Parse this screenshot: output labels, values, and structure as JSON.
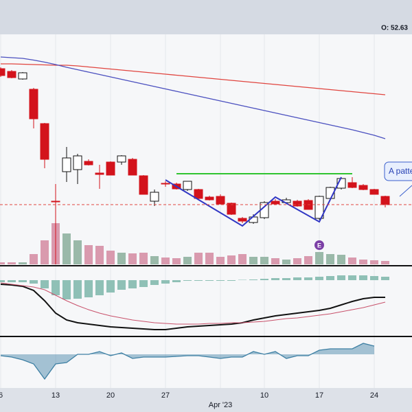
{
  "header": {
    "text": "O: 52.63"
  },
  "chart_data": [
    {
      "type": "candlestick",
      "categories": [
        "6",
        null,
        null,
        null,
        null,
        "13",
        null,
        null,
        null,
        null,
        "20",
        null,
        null,
        null,
        null,
        "27",
        null,
        null,
        null,
        null,
        "Apr '23",
        null,
        null,
        null,
        "10",
        null,
        null,
        null,
        null,
        "17",
        null,
        null,
        null,
        null,
        "24",
        null
      ],
      "open": [
        60,
        59.2,
        57,
        54,
        44,
        21.4,
        30,
        30.6,
        33,
        29.6,
        32.8,
        32.8,
        33.6,
        28.8,
        21.4,
        26.6,
        26.4,
        24.8,
        24.8,
        22.6,
        22.8,
        20.8,
        16.4,
        15.2,
        16.6,
        21.4,
        21,
        21.4,
        21.6,
        16.4,
        22.2,
        25.2,
        26.8,
        26,
        24.8,
        22.8
      ],
      "high": [
        60.4,
        59.6,
        59,
        54.4,
        44.2,
        26.4,
        37.2,
        35.2,
        33.6,
        32,
        33,
        34.8,
        34,
        29,
        24.8,
        27.2,
        26.8,
        27.2,
        25,
        23,
        23.4,
        21,
        16.8,
        17.6,
        21.4,
        22,
        22.4,
        21.8,
        22,
        23,
        25.6,
        28.4,
        28.4,
        26.4,
        25,
        23
      ],
      "low": [
        57.6,
        57.2,
        56.8,
        42.6,
        31,
        3,
        27,
        26.4,
        31.8,
        25,
        29,
        32,
        29,
        23.4,
        20,
        25.6,
        24.8,
        24.4,
        22,
        21.6,
        20.4,
        17.4,
        15,
        14.8,
        16.2,
        20.4,
        20.6,
        19.8,
        19,
        16,
        22,
        24.8,
        25.2,
        24.6,
        23.4,
        19.6
      ],
      "close": [
        58,
        57.4,
        58.8,
        45.4,
        33.6,
        21.2,
        34,
        34.6,
        32,
        29.2,
        29,
        34.6,
        29,
        23.4,
        24,
        26.4,
        25,
        27.2,
        22.2,
        21.8,
        20.6,
        17.6,
        15.6,
        16.8,
        21,
        20.6,
        21.8,
        20,
        19,
        22.8,
        25.4,
        28,
        25.4,
        24.8,
        23.4,
        20.4
      ],
      "up_color": "#ffffff",
      "down_color": "#d3131c",
      "series": [
        {
          "color": "#e0443e",
          "values": [
            61.4,
            61.4,
            61.3,
            61.2,
            61.1,
            61,
            61,
            60.8,
            60.5,
            60.2,
            59.9,
            59.6,
            59.3,
            59,
            58.7,
            58.4,
            58.1,
            57.8,
            57.5,
            57.2,
            56.9,
            56.6,
            56.3,
            56,
            55.7,
            55.4,
            55.1,
            54.8,
            54.5,
            54.2,
            53.9,
            53.6,
            53.3,
            53,
            52.7,
            52.4
          ]
        },
        {
          "color": "#4a4fbf",
          "values": [
            63.4,
            63.2,
            63,
            62.5,
            61.9,
            61.2,
            60.4,
            59.7,
            59,
            58.3,
            57.6,
            56.9,
            56.2,
            55.5,
            54.8,
            54.1,
            53.4,
            52.7,
            52,
            51.3,
            50.6,
            49.9,
            49.2,
            48.5,
            47.8,
            47.1,
            46.4,
            45.7,
            45,
            44.3,
            43.6,
            42.9,
            42.2,
            41.4,
            40.6,
            39.6
          ]
        }
      ],
      "drawings": [
        {
          "color": "#2fc42f",
          "x": [
            16,
            32
          ],
          "values": [
            29.4,
            29.4
          ]
        },
        {
          "color": "#3137c4",
          "x": [
            15,
            22,
            25,
            29,
            31
          ],
          "values": [
            27.6,
            14.2,
            22.6,
            15.4,
            28.4
          ]
        }
      ],
      "price_line_color": "#e0443e",
      "annotation": "A patte",
      "ylim": [
        3,
        70
      ]
    },
    {
      "type": "bar",
      "values": [
        3,
        3,
        3,
        15,
        35,
        60,
        45,
        35,
        28,
        27,
        20,
        17,
        16,
        17,
        12,
        10,
        9,
        11,
        17,
        17,
        11,
        13,
        15,
        11,
        11,
        9,
        7,
        9,
        12,
        18,
        15,
        14,
        10,
        7,
        6,
        5
      ],
      "up_color": "#9ab9a9",
      "down_color": "#d99aae",
      "event": {
        "index": 29,
        "label": "E",
        "color": "#7b3fa6"
      },
      "ylim": [
        0,
        335
      ]
    },
    {
      "type": "macd",
      "values": [
        -3,
        -3,
        -3,
        -5,
        -12,
        -22,
        -28,
        -27,
        -25,
        -22,
        -18,
        -14,
        -12,
        -10,
        -7,
        -5,
        -3,
        -1,
        -1,
        -1,
        -1,
        -1,
        0.5,
        1,
        2,
        3,
        3,
        4,
        4,
        5,
        6,
        7,
        7,
        7,
        6,
        5
      ],
      "color": "#8fc0b6",
      "series": [
        {
          "color": "#111111",
          "values": [
            -6,
            -7,
            -9,
            -15,
            -30,
            -48,
            -58,
            -62,
            -64,
            -66,
            -68,
            -69,
            -70,
            -71,
            -72,
            -72,
            -70,
            -68,
            -67,
            -66,
            -65,
            -64,
            -62,
            -58,
            -55,
            -52,
            -50,
            -48,
            -46,
            -44,
            -41,
            -36,
            -31,
            -27,
            -25,
            -25
          ]
        },
        {
          "color": "#c8506a",
          "values": [
            -4,
            -6,
            -8,
            -10,
            -14,
            -22,
            -30,
            -37,
            -43,
            -48,
            -52,
            -55,
            -58,
            -60,
            -62,
            -63,
            -64,
            -64,
            -64,
            -63,
            -63,
            -62,
            -62,
            -61,
            -60,
            -58,
            -56,
            -55,
            -53,
            -51,
            -49,
            -46,
            -43,
            -40,
            -36,
            -32
          ]
        }
      ],
      "ylim": [
        -82,
        20
      ]
    },
    {
      "type": "area",
      "values": [
        -2,
        -4,
        -8,
        -14,
        -36,
        -14,
        -12,
        0,
        0,
        4,
        -2,
        2,
        -6,
        -4,
        -4,
        -4,
        -3,
        -2,
        -2,
        -4,
        -6,
        -4,
        -4,
        4,
        0,
        4,
        -6,
        -2,
        -2,
        6,
        8,
        8,
        8,
        16,
        12,
        null
      ],
      "color": "#3d7fa3",
      "ylim": [
        -49,
        25
      ]
    }
  ]
}
